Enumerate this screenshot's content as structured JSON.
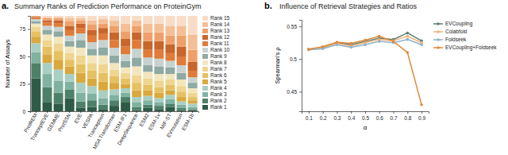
{
  "chart_data": [
    {
      "type": "bar",
      "stacked": true,
      "annotations": [
        "a."
      ],
      "title": "Summary Ranks of Prediction Performance on ProteinGym",
      "ylabel": "Number of Assays",
      "categories": [
        "ProtREM",
        "TranceptEVE",
        "GEMME",
        "ProtSSN",
        "EVE",
        "VESPA",
        "Tranception",
        "MSA Transformer",
        "ESM-IF1",
        "DeepSequence",
        "ESM2",
        "ESM-1v",
        "MIF-ST",
        "EVmutation",
        "ESM-1b"
      ],
      "series": [
        {
          "name": "Rank 1",
          "color": "#2f5a48",
          "values": [
            30,
            8,
            7,
            12,
            3,
            4,
            2,
            5,
            8,
            1,
            3,
            2,
            4,
            1,
            1
          ]
        },
        {
          "name": "Rank 2",
          "color": "#4d8068",
          "values": [
            14,
            14,
            10,
            8,
            6,
            6,
            4,
            5,
            5,
            3,
            3,
            3,
            3,
            2,
            1
          ]
        },
        {
          "name": "Rank 3",
          "color": "#7fb2a0",
          "values": [
            10,
            12,
            11,
            7,
            8,
            6,
            6,
            5,
            4,
            4,
            4,
            3,
            4,
            3,
            2
          ]
        },
        {
          "name": "Rank 4",
          "color": "#a9cfc2",
          "values": [
            8,
            10,
            10,
            7,
            9,
            7,
            7,
            5,
            4,
            5,
            4,
            4,
            4,
            3,
            3
          ]
        },
        {
          "name": "Rank 5",
          "color": "#d9a93f",
          "values": [
            6,
            8,
            9,
            7,
            9,
            7,
            8,
            6,
            4,
            6,
            5,
            5,
            4,
            4,
            3
          ]
        },
        {
          "name": "Rank 6",
          "color": "#e6c162",
          "values": [
            5,
            7,
            8,
            6,
            8,
            7,
            8,
            6,
            5,
            7,
            5,
            5,
            5,
            5,
            3
          ]
        },
        {
          "name": "Rank 7",
          "color": "#efd58f",
          "values": [
            4,
            6,
            7,
            6,
            8,
            7,
            8,
            6,
            5,
            7,
            6,
            6,
            5,
            5,
            4
          ]
        },
        {
          "name": "Rank 8",
          "color": "#f3e6bd",
          "values": [
            3,
            5,
            6,
            6,
            7,
            7,
            8,
            6,
            5,
            8,
            6,
            6,
            5,
            6,
            4
          ]
        },
        {
          "name": "Rank 9",
          "color": "#8fa9a3",
          "values": [
            2,
            4,
            5,
            5,
            7,
            6,
            7,
            7,
            6,
            8,
            6,
            7,
            6,
            6,
            5
          ]
        },
        {
          "name": "Rank 10",
          "color": "#c7d3d0",
          "values": [
            2,
            4,
            4,
            5,
            6,
            6,
            7,
            7,
            6,
            8,
            7,
            7,
            6,
            7,
            5
          ]
        },
        {
          "name": "Rank 11",
          "color": "#e07b39",
          "values": [
            1,
            3,
            3,
            5,
            5,
            6,
            6,
            7,
            7,
            8,
            7,
            8,
            7,
            8,
            6
          ]
        },
        {
          "name": "Rank 12",
          "color": "#c8662b",
          "values": [
            1,
            2,
            3,
            4,
            4,
            5,
            5,
            7,
            7,
            7,
            8,
            8,
            8,
            9,
            8
          ]
        },
        {
          "name": "Rank 13",
          "color": "#efa06a",
          "values": [
            1,
            2,
            2,
            4,
            3,
            5,
            4,
            6,
            7,
            6,
            8,
            8,
            8,
            10,
            11
          ]
        },
        {
          "name": "Rank 14",
          "color": "#f4bf96",
          "values": [
            0,
            1,
            1,
            3,
            2,
            4,
            4,
            5,
            7,
            5,
            8,
            8,
            9,
            9,
            14
          ]
        },
        {
          "name": "Rank 15",
          "color": "#f8dcc6",
          "values": [
            0,
            1,
            1,
            2,
            2,
            4,
            3,
            4,
            7,
            4,
            7,
            7,
            9,
            9,
            17
          ]
        }
      ],
      "ylim": [
        0,
        87
      ],
      "yticks": [
        0,
        25,
        50,
        75
      ],
      "legend": "right"
    },
    {
      "type": "line",
      "annotations": [
        "b."
      ],
      "title": "Influence of Retrieval Strategies and Ratios",
      "xlabel": "α",
      "ylabel": "Spearman's ρ",
      "x": [
        0.1,
        0.2,
        0.3,
        0.4,
        0.5,
        0.6,
        0.7,
        0.8,
        0.9
      ],
      "xlim": [
        0.05,
        0.95
      ],
      "xticks": [
        0.1,
        0.2,
        0.3,
        0.4,
        0.5,
        0.6,
        0.7,
        0.8,
        0.9
      ],
      "ylim": [
        0.42,
        0.56
      ],
      "yticks": [
        0.45,
        0.5,
        0.55
      ],
      "marker": "circle",
      "legend": "right",
      "series": [
        {
          "name": "EVCoupling",
          "color": "#5b7f6e",
          "values": [
            0.515,
            0.518,
            0.525,
            0.522,
            0.527,
            0.532,
            0.53,
            0.54,
            0.528
          ]
        },
        {
          "name": "Colabfold",
          "color": "#f0b27a",
          "values": [
            0.515,
            0.517,
            0.524,
            0.52,
            0.525,
            0.53,
            0.528,
            0.535,
            0.525
          ]
        },
        {
          "name": "Foldseek",
          "color": "#8fb3c9",
          "values": [
            0.514,
            0.516,
            0.522,
            0.518,
            0.522,
            0.527,
            0.525,
            0.53,
            0.522
          ]
        },
        {
          "name": "EVCoupling+Foldseek",
          "color": "#e08a3c",
          "values": [
            0.515,
            0.519,
            0.526,
            0.524,
            0.529,
            0.535,
            0.527,
            0.51,
            0.43
          ]
        }
      ]
    }
  ]
}
